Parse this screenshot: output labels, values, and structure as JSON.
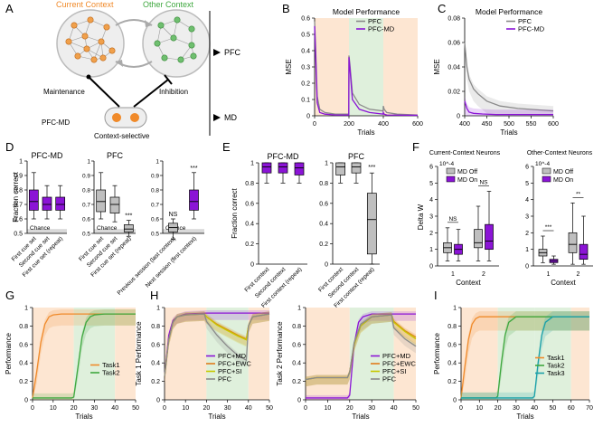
{
  "panel_letters": [
    "A",
    "B",
    "C",
    "D",
    "E",
    "F",
    "G",
    "H",
    "I"
  ],
  "colors": {
    "pfc": "#8a8a8a",
    "pfc_md": "#8b14d6",
    "ewc": "#e07b1a",
    "si": "#c8c800",
    "task1": "#f08a2a",
    "task2": "#3fa83f",
    "task3": "#1aa0a8",
    "bg_orange": "#fde6d2",
    "bg_green": "#dff0dc",
    "chance": "#d9d9d9",
    "node_orange": "#f0a04b",
    "node_green": "#6fbf6f"
  },
  "diagram": {
    "current_context": "Current Context",
    "other_context": "Other Context",
    "pfc": "PFC",
    "md": "MD",
    "maintenance": "Maintenance",
    "inhibition": "Inhibition",
    "pfc_md": "PFC-MD",
    "context_selective": "Context-selective"
  },
  "chart_data": [
    {
      "id": "B",
      "type": "line",
      "title": "Model Performance",
      "xlabel": "Trials",
      "ylabel": "MSE",
      "xlim": [
        0,
        600
      ],
      "ylim": [
        0,
        0.6
      ],
      "xticks": [
        0,
        200,
        400,
        600
      ],
      "yticks": [
        0,
        0.1,
        0.2,
        0.3,
        0.4,
        0.5,
        0.6
      ],
      "legend": [
        "PFC",
        "PFC-MD"
      ],
      "context_bands": [
        [
          0,
          200,
          "orange"
        ],
        [
          200,
          400,
          "green"
        ],
        [
          400,
          600,
          "orange"
        ]
      ],
      "series": [
        {
          "name": "PFC",
          "x": [
            0,
            5,
            15,
            30,
            60,
            120,
            199,
            200,
            205,
            220,
            260,
            320,
            399,
            400,
            405,
            420,
            480,
            600
          ],
          "y": [
            0.58,
            0.45,
            0.12,
            0.04,
            0.02,
            0.01,
            0.01,
            0.37,
            0.32,
            0.14,
            0.07,
            0.04,
            0.03,
            0.06,
            0.04,
            0.02,
            0.01,
            0.005
          ]
        },
        {
          "name": "PFC-MD",
          "x": [
            0,
            5,
            15,
            30,
            60,
            120,
            199,
            200,
            205,
            220,
            260,
            320,
            399,
            400,
            405,
            420,
            480,
            600
          ],
          "y": [
            0.55,
            0.4,
            0.08,
            0.02,
            0.01,
            0.005,
            0.005,
            0.36,
            0.3,
            0.1,
            0.04,
            0.02,
            0.01,
            0.02,
            0.01,
            0.005,
            0.004,
            0.003
          ]
        }
      ]
    },
    {
      "id": "C",
      "type": "line",
      "title": "Model Performance",
      "xlabel": "Trials",
      "ylabel": "MSE",
      "xlim": [
        400,
        600
      ],
      "ylim": [
        0,
        0.08
      ],
      "xticks": [
        400,
        450,
        500,
        550,
        600
      ],
      "yticks": [
        0,
        0.02,
        0.04,
        0.06,
        0.08
      ],
      "legend": [
        "PFC",
        "PFC-MD"
      ],
      "series": [
        {
          "name": "PFC",
          "x": [
            400,
            405,
            410,
            420,
            430,
            450,
            480,
            520,
            560,
            600
          ],
          "y": [
            0.06,
            0.04,
            0.03,
            0.022,
            0.018,
            0.012,
            0.008,
            0.006,
            0.005,
            0.004
          ]
        },
        {
          "name": "PFC-MD",
          "x": [
            400,
            405,
            410,
            420,
            440,
            470,
            520,
            560,
            600
          ],
          "y": [
            0.012,
            0.006,
            0.003,
            0.002,
            0.0015,
            0.001,
            0.001,
            0.001,
            0.001
          ]
        }
      ]
    },
    {
      "id": "D",
      "type": "box",
      "ylabel": "Fraction correct",
      "ylim": [
        0.5,
        1.0
      ],
      "yticks": [
        0.5,
        0.6,
        0.7,
        0.8,
        0.9,
        1.0
      ],
      "chance_label": "Chance",
      "groups": [
        {
          "title": "PFC-MD",
          "color": "purple",
          "categories": [
            "First cue set",
            "Second cue set",
            "First cue set (repeat)"
          ],
          "boxes": [
            [
              0.6,
              0.66,
              0.72,
              0.8,
              0.92
            ],
            [
              0.6,
              0.66,
              0.7,
              0.75,
              0.83
            ],
            [
              0.6,
              0.66,
              0.7,
              0.75,
              0.83
            ]
          ],
          "sig": ""
        },
        {
          "title": "PFC",
          "color": "gray",
          "categories": [
            "First cue set",
            "Second cue set",
            "First cue set (repeat)"
          ],
          "boxes": [
            [
              0.6,
              0.65,
              0.72,
              0.8,
              0.92
            ],
            [
              0.58,
              0.64,
              0.7,
              0.75,
              0.83
            ],
            [
              0.48,
              0.51,
              0.53,
              0.56,
              0.59
            ]
          ],
          "sig": "***"
        },
        {
          "title": "",
          "color": "mixed",
          "categories": [
            "Previous session (last context)",
            "Next session (first context)"
          ],
          "boxes": [
            [
              0.46,
              0.51,
              0.54,
              0.57,
              0.6
            ],
            [
              0.6,
              0.66,
              0.72,
              0.8,
              0.92
            ]
          ],
          "sig_labels": [
            "NS",
            "***"
          ]
        }
      ]
    },
    {
      "id": "E",
      "type": "box",
      "ylabel": "Fraction correct",
      "ylim": [
        0,
        1.0
      ],
      "yticks": [
        0,
        0.2,
        0.4,
        0.6,
        0.8,
        1.0
      ],
      "groups": [
        {
          "title": "PFC-MD",
          "color": "purple",
          "categories": [
            "First context",
            "Second context",
            "First context (repeat)"
          ],
          "boxes": [
            [
              0.8,
              0.9,
              0.96,
              1.0,
              1.0
            ],
            [
              0.8,
              0.9,
              0.96,
              1.0,
              1.0
            ],
            [
              0.8,
              0.88,
              0.95,
              1.0,
              1.0
            ]
          ]
        },
        {
          "title": "PFC",
          "color": "gray",
          "categories": [
            "First context",
            "Second context",
            "First context (repeat)"
          ],
          "boxes": [
            [
              0.8,
              0.88,
              0.96,
              1.0,
              1.0
            ],
            [
              0.8,
              0.9,
              0.96,
              1.0,
              1.0
            ],
            [
              0.0,
              0.1,
              0.44,
              0.7,
              0.9
            ]
          ],
          "sig": "***"
        }
      ]
    },
    {
      "id": "F",
      "type": "box",
      "ylabel": "Delta W",
      "titles": [
        "Current-Context Neurons",
        "Other-Context Neurons"
      ],
      "multiplier": "10^-4",
      "legend": [
        "MD Off",
        "MD On"
      ],
      "xlabel": "Context",
      "panels": [
        {
          "ylim": [
            0,
            6
          ],
          "yticks": [
            0,
            1,
            2,
            3,
            4,
            5,
            6
          ],
          "categories": [
            "1",
            "2"
          ],
          "sig": [
            "NS",
            "NS"
          ],
          "boxes": [
            [
              [
                0.3,
                0.8,
                1.1,
                1.4,
                2.3
              ],
              [
                0.3,
                0.7,
                1.0,
                1.3,
                2.2
              ]
            ],
            [
              [
                0.3,
                1.1,
                1.4,
                2.2,
                3.6
              ],
              [
                0.3,
                1.0,
                1.5,
                2.5,
                4.5
              ]
            ]
          ]
        },
        {
          "ylim": [
            0,
            6
          ],
          "yticks": [
            0,
            1,
            2,
            3,
            4,
            5,
            6
          ],
          "categories": [
            "1",
            "2"
          ],
          "sig": [
            "***",
            "**"
          ],
          "boxes": [
            [
              [
                0.2,
                0.6,
                0.8,
                1.0,
                1.8
              ],
              [
                0.1,
                0.2,
                0.3,
                0.4,
                0.6
              ]
            ],
            [
              [
                0.1,
                0.8,
                1.3,
                2.0,
                3.8
              ],
              [
                0.1,
                0.4,
                0.7,
                1.3,
                3.0
              ]
            ]
          ]
        }
      ]
    },
    {
      "id": "G",
      "type": "line",
      "xlabel": "Trials",
      "ylabel": "Performance",
      "xlim": [
        0,
        50
      ],
      "ylim": [
        0,
        1.0
      ],
      "xticks": [
        0,
        10,
        20,
        30,
        40,
        50
      ],
      "yticks": [
        0,
        0.2,
        0.4,
        0.6,
        0.8,
        1.0
      ],
      "legend": [
        "Task1",
        "Task2"
      ],
      "series": [
        {
          "name": "Task1",
          "x": [
            0,
            2,
            4,
            6,
            8,
            10,
            14,
            20,
            30,
            40,
            50
          ],
          "y": [
            0.02,
            0.3,
            0.62,
            0.82,
            0.9,
            0.92,
            0.93,
            0.93,
            0.93,
            0.93,
            0.93
          ]
        },
        {
          "name": "Task2",
          "x": [
            0,
            19,
            20,
            22,
            24,
            26,
            28,
            30,
            35,
            40,
            50
          ],
          "y": [
            0.02,
            0.02,
            0.03,
            0.35,
            0.68,
            0.84,
            0.9,
            0.92,
            0.93,
            0.93,
            0.93
          ]
        }
      ]
    },
    {
      "id": "H1",
      "type": "line",
      "xlabel": "Trials",
      "ylabel": "Task 1 Performance",
      "xlim": [
        0,
        50
      ],
      "ylim": [
        0,
        1.0
      ],
      "xticks": [
        0,
        10,
        20,
        30,
        40,
        50
      ],
      "yticks": [
        0,
        0.2,
        0.4,
        0.6,
        0.8,
        1.0
      ],
      "legend": [
        "PFC+MD",
        "PFC+EWC",
        "PFC+SI",
        "PFC"
      ],
      "series": [
        {
          "name": "PFC+MD",
          "x": [
            0,
            2,
            4,
            6,
            10,
            20,
            30,
            40,
            50
          ],
          "y": [
            0.25,
            0.7,
            0.86,
            0.9,
            0.93,
            0.94,
            0.94,
            0.94,
            0.94
          ]
        },
        {
          "name": "PFC+EWC",
          "x": [
            0,
            2,
            4,
            6,
            10,
            19,
            20,
            25,
            30,
            35,
            39,
            40,
            42,
            50
          ],
          "y": [
            0.25,
            0.65,
            0.84,
            0.9,
            0.92,
            0.93,
            0.9,
            0.82,
            0.76,
            0.7,
            0.66,
            0.8,
            0.9,
            0.93
          ]
        },
        {
          "name": "PFC+SI",
          "x": [
            0,
            2,
            4,
            6,
            10,
            19,
            20,
            25,
            30,
            35,
            39,
            40,
            42,
            50
          ],
          "y": [
            0.25,
            0.65,
            0.84,
            0.9,
            0.92,
            0.93,
            0.9,
            0.81,
            0.75,
            0.69,
            0.65,
            0.8,
            0.9,
            0.93
          ]
        },
        {
          "name": "PFC",
          "x": [
            0,
            2,
            4,
            6,
            10,
            19,
            20,
            25,
            30,
            35,
            39,
            40,
            42,
            50
          ],
          "y": [
            0.25,
            0.65,
            0.84,
            0.9,
            0.92,
            0.93,
            0.85,
            0.7,
            0.58,
            0.48,
            0.43,
            0.8,
            0.9,
            0.93
          ]
        }
      ]
    },
    {
      "id": "H2",
      "type": "line",
      "xlabel": "Trials",
      "ylabel": "Task 2 Performance",
      "xlim": [
        0,
        50
      ],
      "ylim": [
        0,
        1.0
      ],
      "xticks": [
        0,
        10,
        20,
        30,
        40,
        50
      ],
      "yticks": [
        0,
        0.2,
        0.4,
        0.6,
        0.8,
        1.0
      ],
      "legend": [
        "PFC+MD",
        "PFC+EWC",
        "PFC+SI",
        "PFC"
      ],
      "series": [
        {
          "name": "PFC+MD",
          "x": [
            0,
            19,
            20,
            22,
            24,
            26,
            30,
            40,
            50
          ],
          "y": [
            0.02,
            0.02,
            0.05,
            0.6,
            0.84,
            0.9,
            0.93,
            0.93,
            0.93
          ]
        },
        {
          "name": "PFC+EWC",
          "x": [
            0,
            5,
            19,
            20,
            22,
            25,
            30,
            39,
            40,
            45,
            50
          ],
          "y": [
            0.22,
            0.24,
            0.24,
            0.3,
            0.6,
            0.8,
            0.9,
            0.92,
            0.85,
            0.75,
            0.68
          ]
        },
        {
          "name": "PFC+SI",
          "x": [
            0,
            5,
            19,
            20,
            22,
            25,
            30,
            39,
            40,
            45,
            50
          ],
          "y": [
            0.22,
            0.24,
            0.24,
            0.3,
            0.6,
            0.8,
            0.9,
            0.92,
            0.84,
            0.74,
            0.66
          ]
        },
        {
          "name": "PFC",
          "x": [
            0,
            5,
            19,
            20,
            22,
            25,
            30,
            39,
            40,
            45,
            50
          ],
          "y": [
            0.22,
            0.24,
            0.24,
            0.3,
            0.62,
            0.82,
            0.9,
            0.92,
            0.78,
            0.66,
            0.58
          ]
        }
      ]
    },
    {
      "id": "I",
      "type": "line",
      "xlabel": "Trials",
      "ylabel": "Performance",
      "xlim": [
        0,
        70
      ],
      "ylim": [
        0,
        1.0
      ],
      "xticks": [
        0,
        10,
        20,
        30,
        40,
        50,
        60,
        70
      ],
      "yticks": [
        0,
        0.2,
        0.4,
        0.6,
        0.8,
        1.0
      ],
      "legend": [
        "Task1",
        "Task2",
        "Task3"
      ],
      "series": [
        {
          "name": "Task1",
          "x": [
            0,
            2,
            4,
            6,
            8,
            10,
            20,
            40,
            50,
            60,
            70
          ],
          "y": [
            0.02,
            0.35,
            0.65,
            0.82,
            0.88,
            0.9,
            0.9,
            0.9,
            0.9,
            0.9,
            0.9
          ]
        },
        {
          "name": "Task2",
          "x": [
            0,
            19,
            20,
            22,
            24,
            26,
            30,
            40,
            50,
            60,
            70
          ],
          "y": [
            0.02,
            0.02,
            0.04,
            0.4,
            0.7,
            0.84,
            0.9,
            0.9,
            0.9,
            0.9,
            0.9
          ]
        },
        {
          "name": "Task3",
          "x": [
            0,
            39,
            40,
            42,
            44,
            46,
            50,
            60,
            70
          ],
          "y": [
            0.02,
            0.02,
            0.04,
            0.4,
            0.7,
            0.84,
            0.9,
            0.9,
            0.9
          ]
        }
      ]
    }
  ]
}
